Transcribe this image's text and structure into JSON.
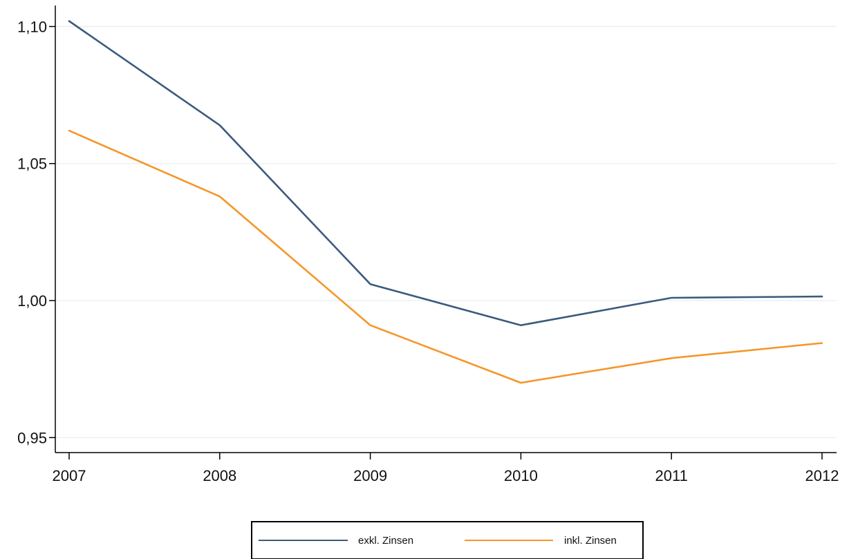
{
  "chart_data": {
    "type": "line",
    "x": [
      2007,
      2008,
      2009,
      2010,
      2011,
      2012
    ],
    "x_tick_labels": [
      "2007",
      "2008",
      "2009",
      "2010",
      "2011",
      "2012"
    ],
    "y_ticks": [
      0.95,
      1.0,
      1.05,
      1.1
    ],
    "y_tick_labels": [
      "0,95",
      "1,00",
      "1,05",
      "1,10"
    ],
    "ylim": [
      0.95,
      1.1
    ],
    "xlabel": "",
    "ylabel": "",
    "grid": "horizontal",
    "legend_position": "bottom",
    "series": [
      {
        "name": "exkl. Zinsen",
        "color": "#3b5a7d",
        "values": [
          1.102,
          1.064,
          1.006,
          0.991,
          1.001,
          1.0015
        ]
      },
      {
        "name": "inkl. Zinsen",
        "color": "#f5962a",
        "values": [
          1.062,
          1.038,
          0.991,
          0.97,
          0.979,
          0.9845
        ]
      }
    ]
  }
}
